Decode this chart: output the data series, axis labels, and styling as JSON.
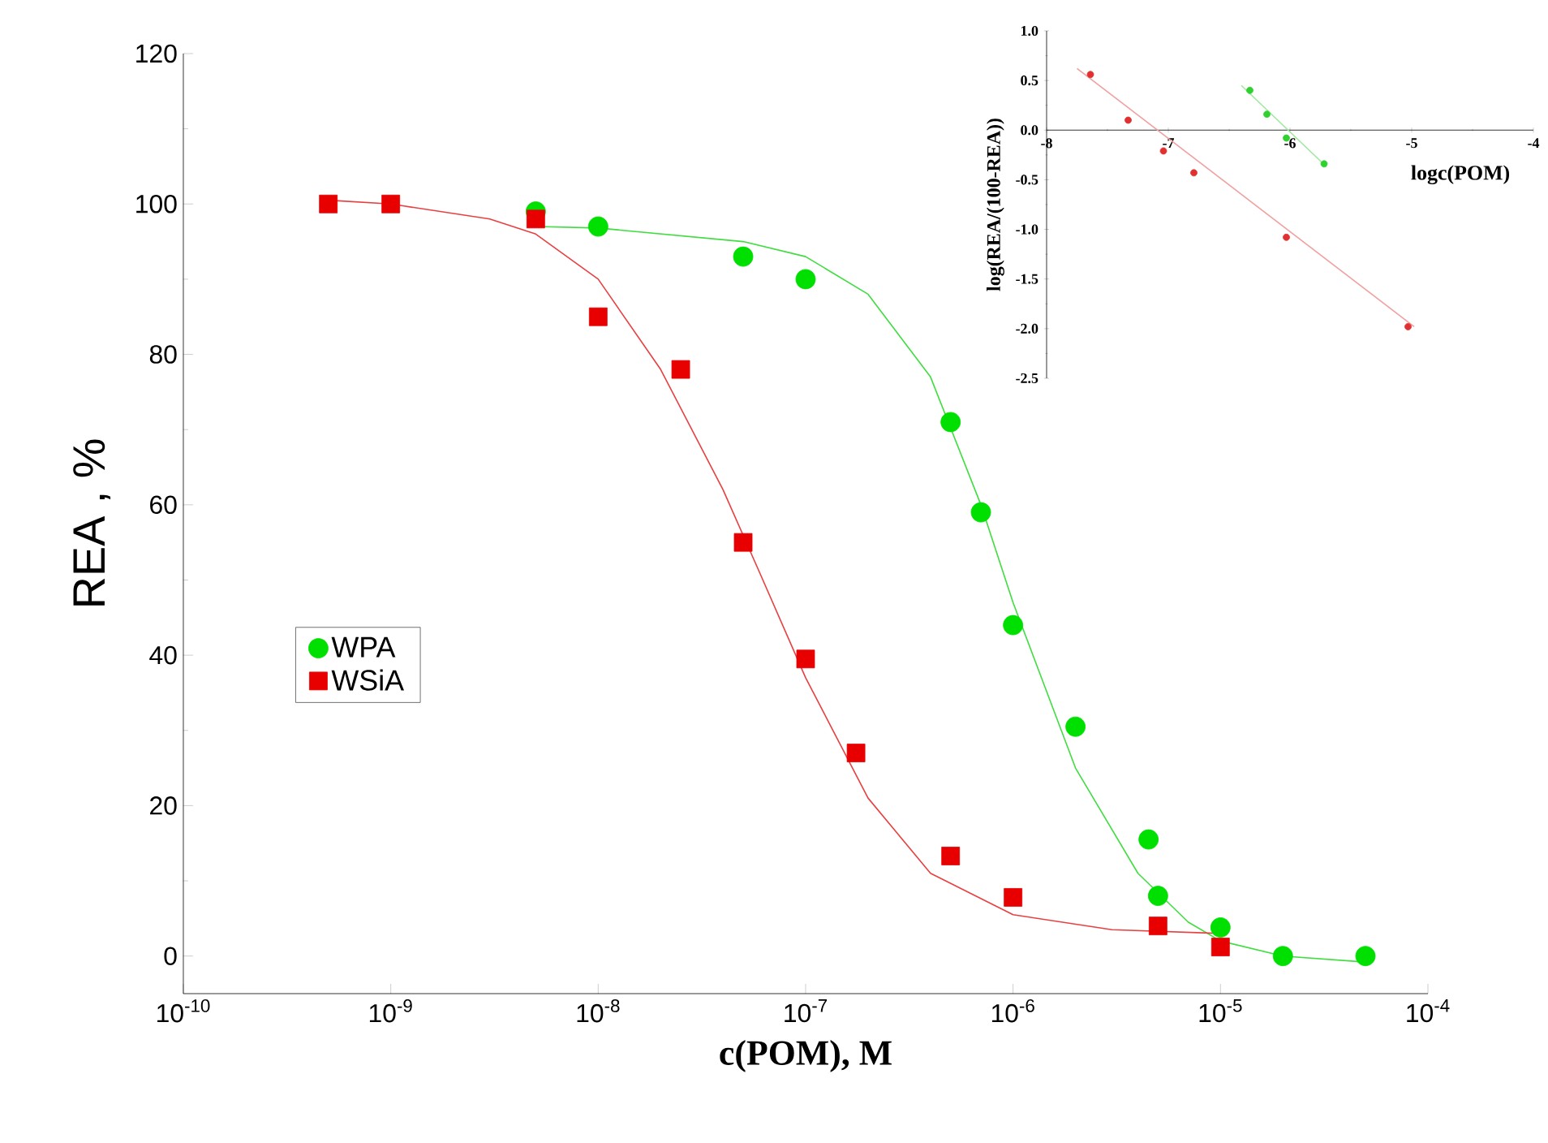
{
  "chart_data": [
    {
      "type": "scatter",
      "xlabel": "c(POM), M",
      "ylabel": "REA , %",
      "log": "x",
      "legend": "left",
      "xlim": [
        1e-10,
        0.0001
      ],
      "xticks": [
        {
          "value": 1e-10,
          "label": "10$^{-10}$"
        },
        {
          "value": 1e-09,
          "label": "10$^{-9}$"
        },
        {
          "value": 1e-08,
          "label": "10$^{-8}$"
        },
        {
          "value": 1e-07,
          "label": "10$^{-7}$"
        },
        {
          "value": 1e-06,
          "label": "10$^{-6}$"
        },
        {
          "value": 1e-05,
          "label": "10$^{-5}$"
        },
        {
          "value": 0.0001,
          "label": "10$^{-4}$"
        }
      ],
      "ylim": [
        -5,
        120
      ],
      "yticks": [
        0,
        20,
        40,
        60,
        80,
        100,
        120
      ],
      "series": [
        {
          "name": "WPA",
          "marker": "circle",
          "color": "#00e000",
          "x": [
            5e-09,
            1e-08,
            5e-08,
            1e-07,
            5e-07,
            7e-07,
            1e-06,
            2e-06,
            4.5e-06,
            5e-06,
            1e-05,
            2e-05,
            5e-05
          ],
          "values": [
            99,
            97,
            93,
            90,
            71,
            59,
            44,
            30.5,
            15.5,
            8,
            3.8,
            0,
            0
          ]
        },
        {
          "name": "WSiA",
          "marker": "square",
          "color": "#e80000",
          "x": [
            5e-10,
            1e-09,
            5e-09,
            1e-08,
            2.5e-08,
            5e-08,
            1e-07,
            1.75e-07,
            5e-07,
            1e-06,
            5e-06,
            1e-05
          ],
          "values": [
            100,
            100,
            98,
            85,
            78,
            55,
            39.5,
            27,
            13.3,
            7.8,
            4,
            1.2
          ]
        },
        {
          "type": "line",
          "marker": "none",
          "color": "#40dd40",
          "x": [
            5e-09,
            1e-08,
            5e-08,
            1e-07,
            2e-07,
            4e-07,
            7e-07,
            1e-06,
            2e-06,
            4e-06,
            7e-06,
            1e-05,
            2e-05,
            5e-05
          ],
          "values": [
            97,
            96.8,
            95,
            93,
            88,
            77,
            60,
            47,
            25,
            11,
            4.5,
            2,
            0,
            -0.8
          ]
        },
        {
          "type": "line",
          "marker": "none",
          "color": "#e84040",
          "x": [
            5e-10,
            1e-09,
            3e-09,
            5e-09,
            1e-08,
            2e-08,
            4e-08,
            6e-08,
            1e-07,
            2e-07,
            4e-07,
            1e-06,
            3e-06,
            1e-05
          ],
          "values": [
            100.5,
            100,
            98,
            96,
            90,
            78,
            62,
            51,
            37,
            21,
            11,
            5.5,
            3.5,
            3
          ]
        }
      ]
    },
    {
      "type": "scatter",
      "xlabel": "logc(POM)",
      "ylabel": "log(REA/(100-REA))",
      "xlim": [
        -8,
        -4
      ],
      "xticks": [
        -8,
        -7,
        -6,
        -5,
        -4
      ],
      "ylim": [
        -2.5,
        1
      ],
      "yticks": [
        {
          "value": -2.5,
          "label": "-2.5"
        },
        {
          "value": -2,
          "label": "-2.0"
        },
        {
          "value": -1.5,
          "label": "-1.5"
        },
        {
          "value": -1,
          "label": "-1.0"
        },
        {
          "value": -0.5,
          "label": "-0.5"
        },
        {
          "value": 0,
          "label": "0.0"
        },
        {
          "value": 0.5,
          "label": "0.5"
        },
        {
          "value": 1,
          "label": "1.0"
        }
      ],
      "series": [
        {
          "marker": "circle",
          "color": "#e03030",
          "x": [
            -7.64,
            -7.33,
            -7.04,
            -6.79,
            -6.03,
            -5.03
          ],
          "values": [
            0.56,
            0.1,
            -0.21,
            -0.43,
            -1.08,
            -1.98
          ]
        },
        {
          "marker": "circle",
          "color": "#30d030",
          "x": [
            -6.33,
            -6.19,
            -6.03,
            -5.72
          ],
          "values": [
            0.4,
            0.16,
            -0.08,
            -0.34
          ]
        },
        {
          "type": "line",
          "marker": "none",
          "color": "#f0a0a0",
          "x": [
            -7.75,
            -4.98
          ],
          "values": [
            0.62,
            -1.98
          ]
        },
        {
          "type": "line",
          "marker": "none",
          "color": "#a0e8a0",
          "x": [
            -6.4,
            -5.7
          ],
          "values": [
            0.45,
            -0.37
          ]
        }
      ]
    }
  ]
}
